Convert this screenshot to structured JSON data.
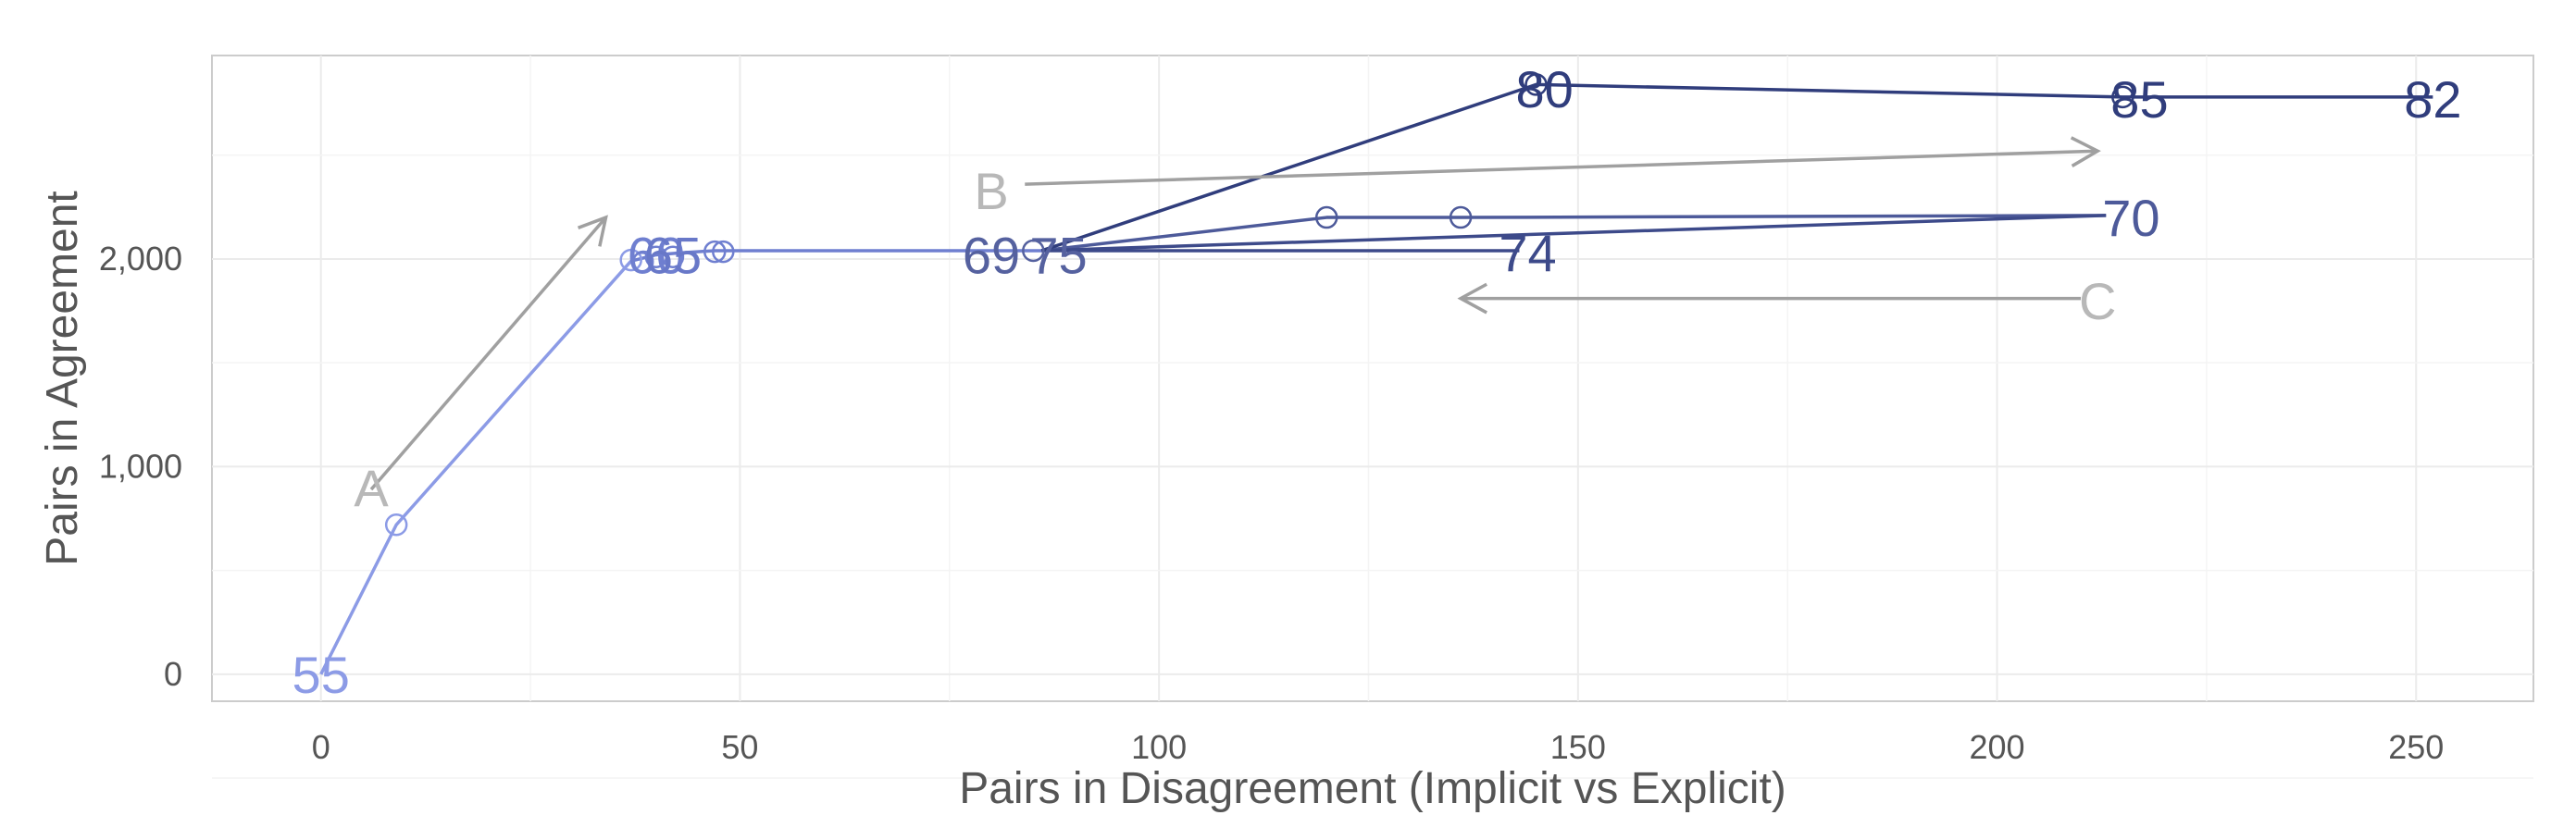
{
  "chart_data": {
    "type": "line",
    "title": "",
    "xlabel": "Pairs in Disagreement (Implicit vs Explicit)",
    "ylabel": "Pairs in Agreement",
    "xlim": [
      -13,
      264
    ],
    "ylim": [
      -130,
      2980
    ],
    "x_ticks": [
      0,
      50,
      100,
      150,
      200,
      250
    ],
    "y_ticks": [
      0,
      1000,
      2000
    ],
    "x_tick_labels": [
      "0",
      "50",
      "100",
      "150",
      "200",
      "250"
    ],
    "y_tick_labels": [
      "0",
      "1,000",
      "2,000"
    ],
    "grid": true,
    "legend": "none",
    "point_labels": [
      {
        "text": "55",
        "x": 0,
        "y": 0,
        "color": "#8c9be6"
      },
      {
        "text": "60",
        "x": 40,
        "y": 2020,
        "color": "#6f7fd0"
      },
      {
        "text": "65",
        "x": 42,
        "y": 2020,
        "color": "#6878c8"
      },
      {
        "text": "69",
        "x": 80,
        "y": 2020,
        "color": "#55619f"
      },
      {
        "text": "75",
        "x": 88,
        "y": 2020,
        "color": "#55619f"
      },
      {
        "text": "74",
        "x": 144,
        "y": 2030,
        "color": "#3d4a8a"
      },
      {
        "text": "70",
        "x": 216,
        "y": 2200,
        "color": "#4d5a9a"
      },
      {
        "text": "80",
        "x": 146,
        "y": 2820,
        "color": "#303d7c"
      },
      {
        "text": "85",
        "x": 217,
        "y": 2770,
        "color": "#303d7c"
      },
      {
        "text": "82",
        "x": 252,
        "y": 2770,
        "color": "#303d7c"
      }
    ],
    "series": [
      {
        "color": "#8c9be6",
        "x": [
          0,
          9,
          37
        ],
        "y": [
          0,
          720,
          1990
        ]
      },
      {
        "color": "#6f7fd0",
        "x": [
          37,
          40,
          43,
          47,
          48,
          86
        ],
        "y": [
          1990,
          2020,
          2030,
          2040,
          2040,
          2040
        ]
      },
      {
        "color": "#4d5a9a",
        "x": [
          86,
          120,
          136,
          213
        ],
        "y": [
          2040,
          2200,
          2200,
          2210
        ]
      },
      {
        "color": "#3d4a8a",
        "x": [
          86,
          213
        ],
        "y": [
          2040,
          2210
        ]
      },
      {
        "color": "#3d4a8a",
        "x": [
          86,
          143
        ],
        "y": [
          2040,
          2040
        ]
      },
      {
        "color": "#303d7c",
        "x": [
          86,
          145,
          215,
          252
        ],
        "y": [
          2040,
          2840,
          2780,
          2780
        ]
      }
    ],
    "circle_points": [
      {
        "x": 9,
        "y": 720,
        "color": "#8c9be6"
      },
      {
        "x": 37,
        "y": 1995,
        "color": "#8c9be6"
      },
      {
        "x": 40,
        "y": 2010,
        "color": "#6f7fd0"
      },
      {
        "x": 42,
        "y": 2010,
        "color": "#6f7fd0"
      },
      {
        "x": 47,
        "y": 2035,
        "color": "#6f7fd0"
      },
      {
        "x": 48,
        "y": 2035,
        "color": "#6f7fd0"
      },
      {
        "x": 85,
        "y": 2040,
        "color": "#55619f"
      },
      {
        "x": 120,
        "y": 2200,
        "color": "#4d5a9a"
      },
      {
        "x": 136,
        "y": 2200,
        "color": "#4d5a9a"
      },
      {
        "x": 145,
        "y": 2840,
        "color": "#303d7c"
      },
      {
        "x": 215,
        "y": 2780,
        "color": "#303d7c"
      }
    ],
    "annotations": [
      {
        "label": "A",
        "label_at": [
          6,
          900
        ],
        "arrow_from": [
          6,
          890
        ],
        "arrow_to": [
          34,
          2200
        ]
      },
      {
        "label": "B",
        "label_at": [
          80,
          2330
        ],
        "arrow_from": [
          84,
          2360
        ],
        "arrow_to": [
          212,
          2520
        ]
      },
      {
        "label": "C",
        "label_at": [
          212,
          1800
        ],
        "arrow_from": [
          210,
          1810
        ],
        "arrow_to": [
          136,
          1810
        ]
      }
    ]
  }
}
